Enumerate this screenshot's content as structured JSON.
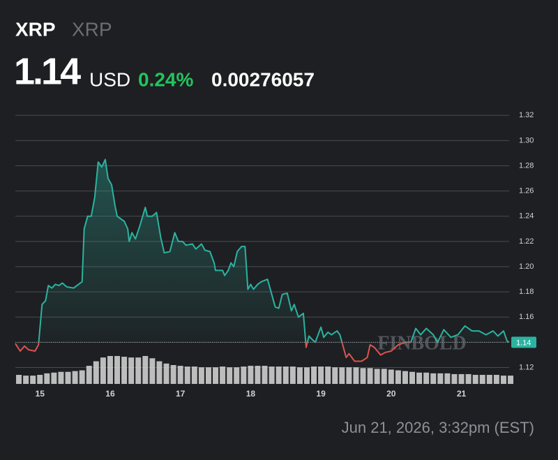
{
  "header": {
    "symbol": "XRP",
    "name": "XRP",
    "price": "1.14",
    "currency": "USD",
    "change": "0.24%",
    "btc_price": "0.00276057"
  },
  "chart_data": {
    "type": "line",
    "x": [
      14.65,
      14.72,
      14.78,
      14.84,
      14.93,
      14.98,
      15.03,
      15.08,
      15.12,
      15.17,
      15.22,
      15.27,
      15.32,
      15.38,
      15.48,
      15.55,
      15.6,
      15.63,
      15.68,
      15.73,
      15.78,
      15.83,
      15.88,
      15.93,
      15.97,
      16.02,
      16.07,
      16.1,
      16.2,
      16.25,
      16.27,
      16.31,
      16.36,
      16.42,
      16.5,
      16.53,
      16.6,
      16.66,
      16.72,
      16.77,
      16.85,
      16.92,
      16.97,
      17.03,
      17.08,
      17.17,
      17.22,
      17.3,
      17.35,
      17.42,
      17.48,
      17.5,
      17.6,
      17.63,
      17.68,
      17.72,
      17.76,
      17.81,
      17.87,
      17.92,
      17.96,
      18.0,
      18.04,
      18.1,
      18.15,
      18.24,
      18.3,
      18.35,
      18.4,
      18.45,
      18.52,
      18.58,
      18.62,
      18.68,
      18.75,
      18.79,
      18.83,
      18.88,
      18.92,
      19.0,
      19.04,
      19.1,
      19.15,
      19.23,
      19.27,
      19.32,
      19.36,
      19.4,
      19.48,
      19.58,
      19.66,
      19.7,
      19.76,
      19.85,
      19.92,
      20.0,
      20.1,
      20.2,
      20.28,
      20.35,
      20.42,
      20.5,
      20.6,
      20.66,
      20.75,
      20.85,
      20.95,
      21.05,
      21.15,
      21.25,
      21.35,
      21.45,
      21.52,
      21.6,
      21.65,
      21.68
    ],
    "series": [
      {
        "name": "XRP",
        "color": "#2bb3a0",
        "down_color": "#e0524f",
        "values": [
          1.139,
          1.133,
          1.137,
          1.134,
          1.133,
          1.138,
          1.17,
          1.173,
          1.185,
          1.183,
          1.186,
          1.185,
          1.187,
          1.184,
          1.183,
          1.186,
          1.188,
          1.23,
          1.24,
          1.24,
          1.255,
          1.283,
          1.279,
          1.285,
          1.27,
          1.265,
          1.248,
          1.24,
          1.236,
          1.23,
          1.22,
          1.227,
          1.222,
          1.232,
          1.247,
          1.24,
          1.24,
          1.243,
          1.223,
          1.211,
          1.212,
          1.227,
          1.22,
          1.22,
          1.217,
          1.218,
          1.214,
          1.218,
          1.213,
          1.212,
          1.203,
          1.197,
          1.197,
          1.193,
          1.197,
          1.203,
          1.2,
          1.212,
          1.216,
          1.216,
          1.182,
          1.186,
          1.182,
          1.186,
          1.188,
          1.19,
          1.178,
          1.168,
          1.167,
          1.178,
          1.179,
          1.165,
          1.17,
          1.16,
          1.163,
          1.136,
          1.145,
          1.142,
          1.14,
          1.152,
          1.144,
          1.148,
          1.146,
          1.149,
          1.146,
          1.136,
          1.128,
          1.131,
          1.125,
          1.125,
          1.128,
          1.138,
          1.136,
          1.13,
          1.132,
          1.133,
          1.138,
          1.14,
          1.14,
          1.151,
          1.146,
          1.151,
          1.146,
          1.14,
          1.15,
          1.144,
          1.146,
          1.153,
          1.149,
          1.149,
          1.146,
          1.149,
          1.145,
          1.149,
          1.141,
          1.14
        ]
      }
    ],
    "reference_line": 1.14,
    "volume": {
      "color": "#d9d9d9",
      "x": [
        14.7,
        14.8,
        14.9,
        15.0,
        15.1,
        15.2,
        15.3,
        15.4,
        15.5,
        15.6,
        15.7,
        15.8,
        15.9,
        16.0,
        16.1,
        16.2,
        16.3,
        16.4,
        16.5,
        16.6,
        16.7,
        16.8,
        16.9,
        17.0,
        17.1,
        17.2,
        17.3,
        17.4,
        17.5,
        17.6,
        17.7,
        17.8,
        17.9,
        18.0,
        18.1,
        18.2,
        18.3,
        18.4,
        18.5,
        18.6,
        18.7,
        18.8,
        18.9,
        19.0,
        19.1,
        19.2,
        19.3,
        19.4,
        19.5,
        19.6,
        19.7,
        19.8,
        19.9,
        20.0,
        20.1,
        20.2,
        20.3,
        20.4,
        20.5,
        20.6,
        20.7,
        20.8,
        20.9,
        21.0,
        21.1,
        21.2,
        21.3,
        21.4,
        21.5,
        21.6,
        21.7
      ],
      "values": [
        12,
        11,
        11,
        12,
        14,
        15,
        16,
        16,
        17,
        18,
        24,
        30,
        35,
        37,
        37,
        36,
        35,
        35,
        37,
        34,
        30,
        27,
        25,
        24,
        23,
        23,
        22,
        22,
        22,
        23,
        22,
        22,
        23,
        24,
        24,
        24,
        23,
        23,
        23,
        23,
        22,
        22,
        23,
        23,
        23,
        22,
        22,
        22,
        22,
        21,
        21,
        20,
        20,
        19,
        18,
        17,
        16,
        15,
        15,
        14,
        14,
        14,
        13,
        13,
        13,
        12,
        12,
        12,
        12,
        11,
        11
      ]
    },
    "xlim": [
      14.65,
      21.68
    ],
    "ylim": [
      1.107,
      1.334
    ],
    "xticks": [
      15,
      16,
      17,
      18,
      19,
      20,
      21
    ],
    "yticks": [
      1.12,
      1.14,
      1.16,
      1.18,
      {
        "value": 1.2,
        "label": "1.20"
      },
      1.22,
      1.24,
      1.26,
      1.28,
      {
        "value": 1.3,
        "label": "1.30"
      },
      1.32
    ],
    "grid": true,
    "watermark": "FINBOLD",
    "timestamp": "Jun 21, 2026, 3:32pm (EST)"
  }
}
